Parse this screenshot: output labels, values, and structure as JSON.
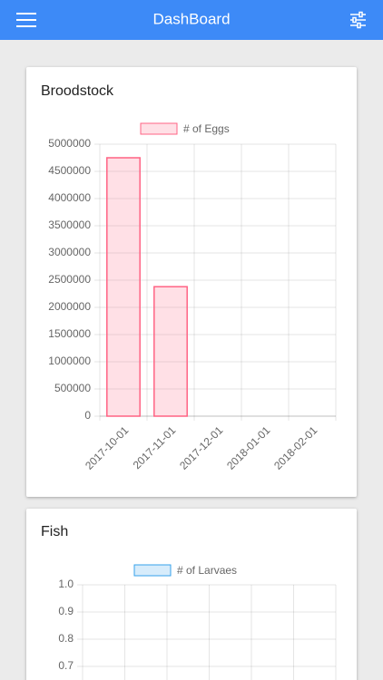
{
  "header": {
    "title": "DashBoard"
  },
  "chart_data": [
    {
      "type": "bar",
      "title": "Broodstock",
      "categories": [
        "2017-10-01",
        "2017-11-01",
        "2017-12-01",
        "2018-01-01",
        "2018-02-01"
      ],
      "series": [
        {
          "name": "# of Eggs",
          "color": "rgba(255, 99, 132, 0.2)",
          "border_color": "rgb(255, 99, 132)",
          "values": [
            4750000,
            2380000,
            0,
            0,
            0
          ]
        }
      ],
      "ylim": [
        0,
        5000000
      ],
      "yticks": [
        0,
        500000,
        1000000,
        1500000,
        2000000,
        2500000,
        3000000,
        3500000,
        4000000,
        4500000,
        5000000
      ],
      "grid": true
    },
    {
      "type": "bar",
      "title": "Fish",
      "categories": [
        null,
        null,
        null,
        null,
        null,
        null
      ],
      "series": [
        {
          "name": "# of Larvaes",
          "color": "rgba(54, 162, 235, 0.2)",
          "border_color": "rgb(54, 162, 235)"
        }
      ],
      "ylim": [
        0,
        1
      ],
      "yticks": [
        {
          "value": 0.7,
          "label": "0.7"
        },
        {
          "value": 0.8,
          "label": "0.8"
        },
        {
          "value": 0.9,
          "label": "0.9"
        },
        {
          "value": 1,
          "label": "1.0"
        }
      ],
      "grid": true
    }
  ]
}
